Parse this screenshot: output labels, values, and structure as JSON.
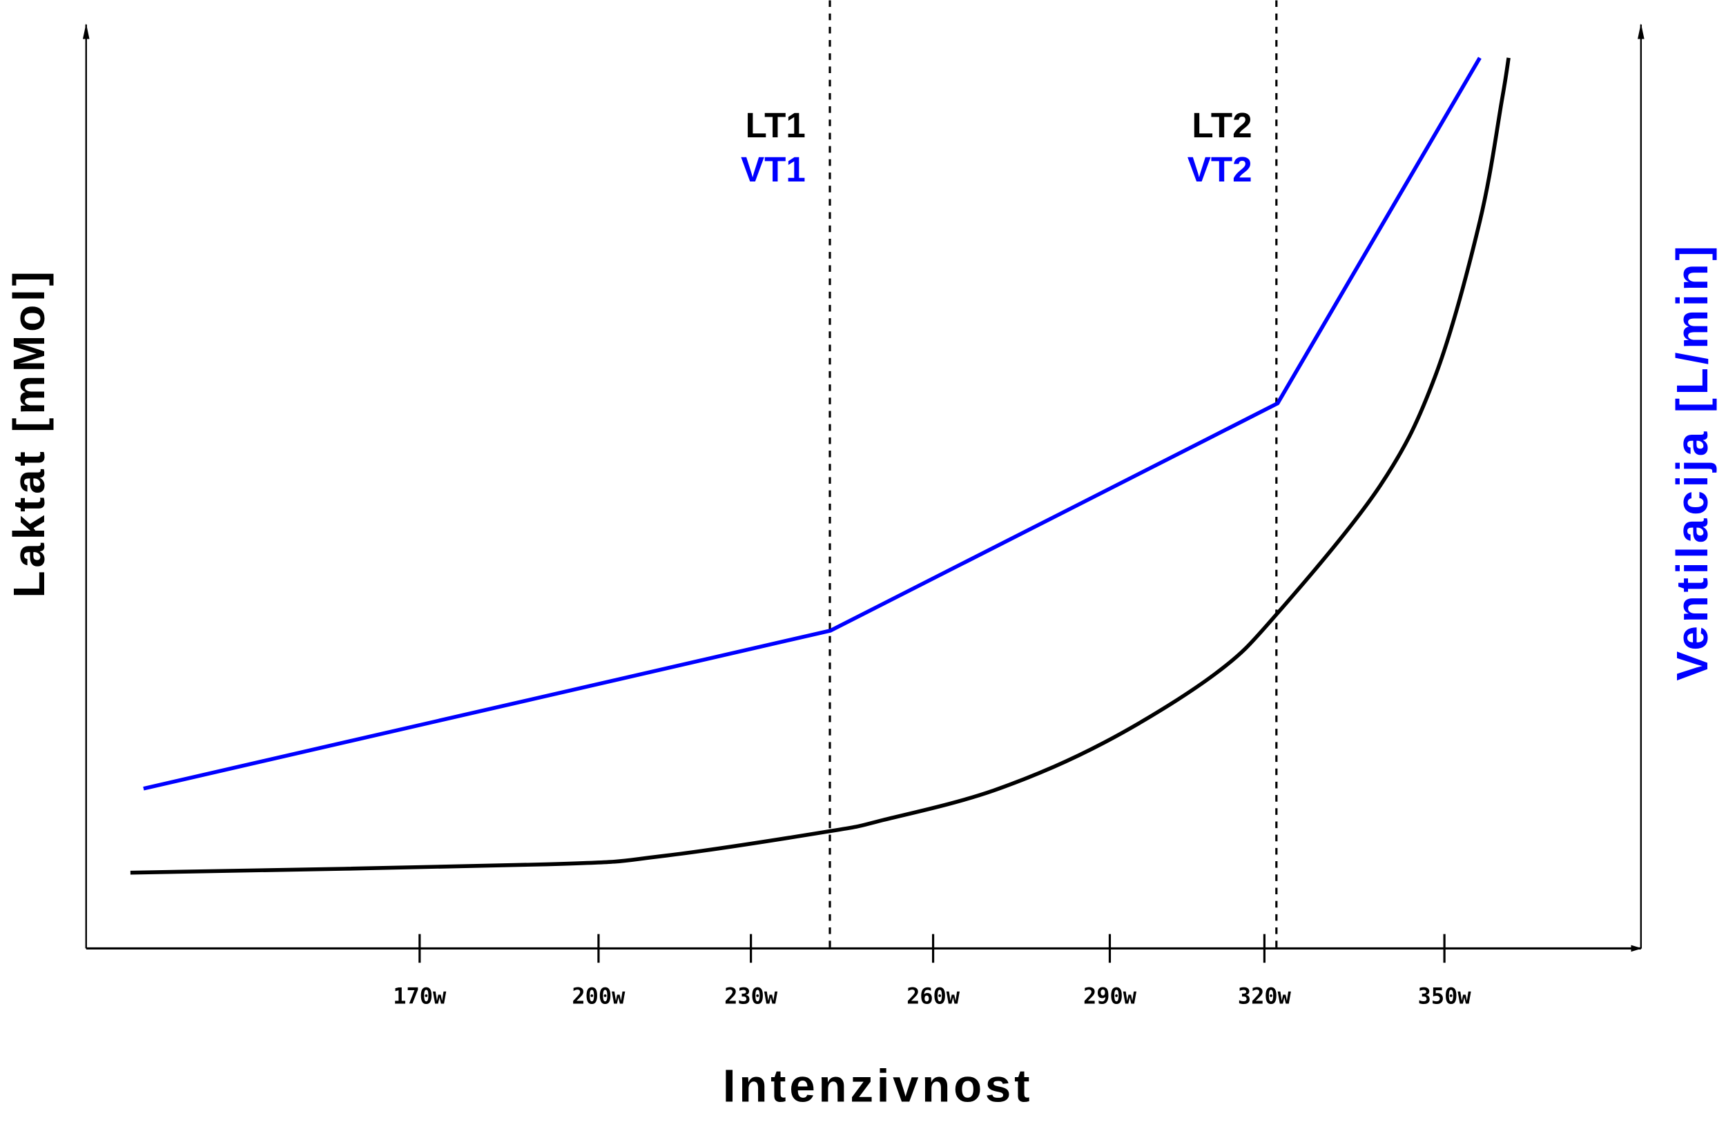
{
  "chart_data": {
    "type": "line",
    "title": "",
    "xlabel": "Intenzivnost",
    "ylabel": "Laktat [mMol]",
    "ylabel_right": "Ventilacija [L/min]",
    "x_ticks": [
      170,
      200,
      230,
      260,
      290,
      320,
      350
    ],
    "x_tick_labels": [
      "170w",
      "200w",
      "230w",
      "260w",
      "290w",
      "320w",
      "350w"
    ],
    "ylim": [
      0,
      100
    ],
    "grid": false,
    "colors": {
      "lactate": "#000000",
      "ventilation": "#0000ff",
      "axis": "#000000"
    },
    "thresholds": [
      {
        "x": 243,
        "label_lt": "LT1",
        "label_vt": "VT1"
      },
      {
        "x": 322,
        "label_lt": "LT2",
        "label_vt": "VT2"
      }
    ],
    "series": [
      {
        "name": "Laktat",
        "color": "#000000",
        "smooth": true,
        "x": [
          121.5,
          191.3,
          212.6,
          243.1,
          251.8,
          270.3,
          289.1,
          310.4,
          322.2,
          339.3,
          348.5,
          355.9,
          359.6,
          360.7
        ],
        "y": [
          8.2,
          9.1,
          10.0,
          12.7,
          13.9,
          17.1,
          22.3,
          29.7,
          36.3,
          50.1,
          62.0,
          78.7,
          91.9,
          96.4
        ]
      },
      {
        "name": "Ventilacija",
        "color": "#0000ff",
        "smooth": false,
        "x": [
          123.7,
          243.1,
          322.2,
          355.9
        ],
        "y": [
          17.3,
          34.4,
          59.0,
          96.4
        ]
      }
    ]
  }
}
